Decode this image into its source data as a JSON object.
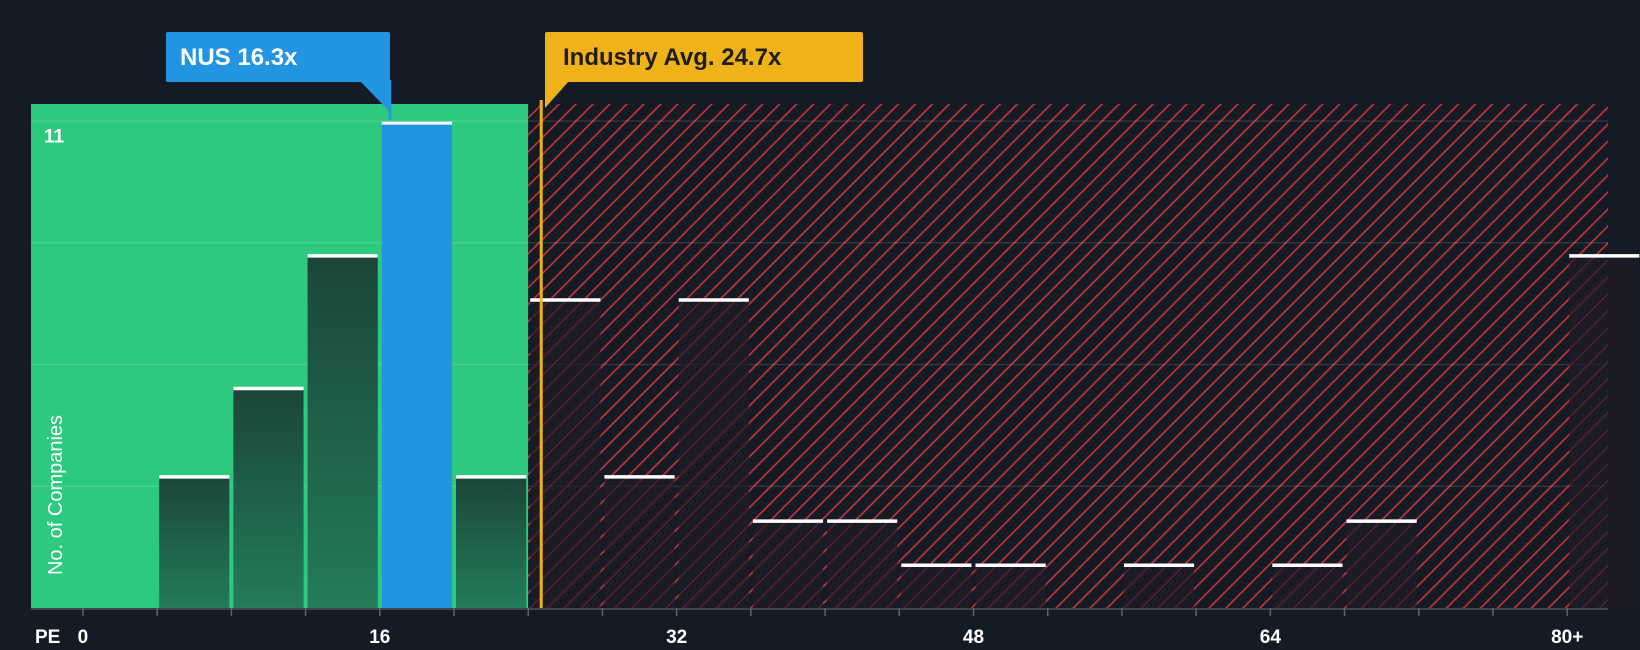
{
  "chart_data": {
    "type": "bar",
    "x_axis_label": "PE",
    "y_axis_label": "No. of Companies",
    "x_ticks": [
      "0",
      "16",
      "32",
      "48",
      "64",
      "80+"
    ],
    "x_tick_values": [
      0,
      16,
      32,
      48,
      64,
      80
    ],
    "y_ticks": [
      11
    ],
    "xlim": [
      -2.8,
      82.2
    ],
    "ylim": [
      0,
      11.4
    ],
    "bin_width": 4,
    "bins": [
      {
        "start": 4,
        "count": 3
      },
      {
        "start": 8,
        "count": 5
      },
      {
        "start": 12,
        "count": 8
      },
      {
        "start": 16,
        "count": 11,
        "highlight": true
      },
      {
        "start": 20,
        "count": 3
      },
      {
        "start": 24,
        "count": 7
      },
      {
        "start": 28,
        "count": 3
      },
      {
        "start": 32,
        "count": 7
      },
      {
        "start": 36,
        "count": 2
      },
      {
        "start": 40,
        "count": 2
      },
      {
        "start": 44,
        "count": 1
      },
      {
        "start": 48,
        "count": 1
      },
      {
        "start": 56,
        "count": 1
      },
      {
        "start": 64,
        "count": 1
      },
      {
        "start": 68,
        "count": 2
      },
      {
        "start": 80,
        "count": 8
      }
    ],
    "company": {
      "label": "NUS 16.3x",
      "value": 16.3,
      "color": "#2394e0"
    },
    "industry": {
      "label": "Industry Avg. 24.7x",
      "value": 24.7,
      "color": "#f0b219"
    },
    "grid": true,
    "colors": {
      "background": "#151b24",
      "good_zone": "#2dc97e",
      "bad_zone": "#c0323a",
      "bar_good": "#1c4a3d",
      "bar_bad": "#1d1c26",
      "bar_cap": "#ffffff"
    }
  }
}
